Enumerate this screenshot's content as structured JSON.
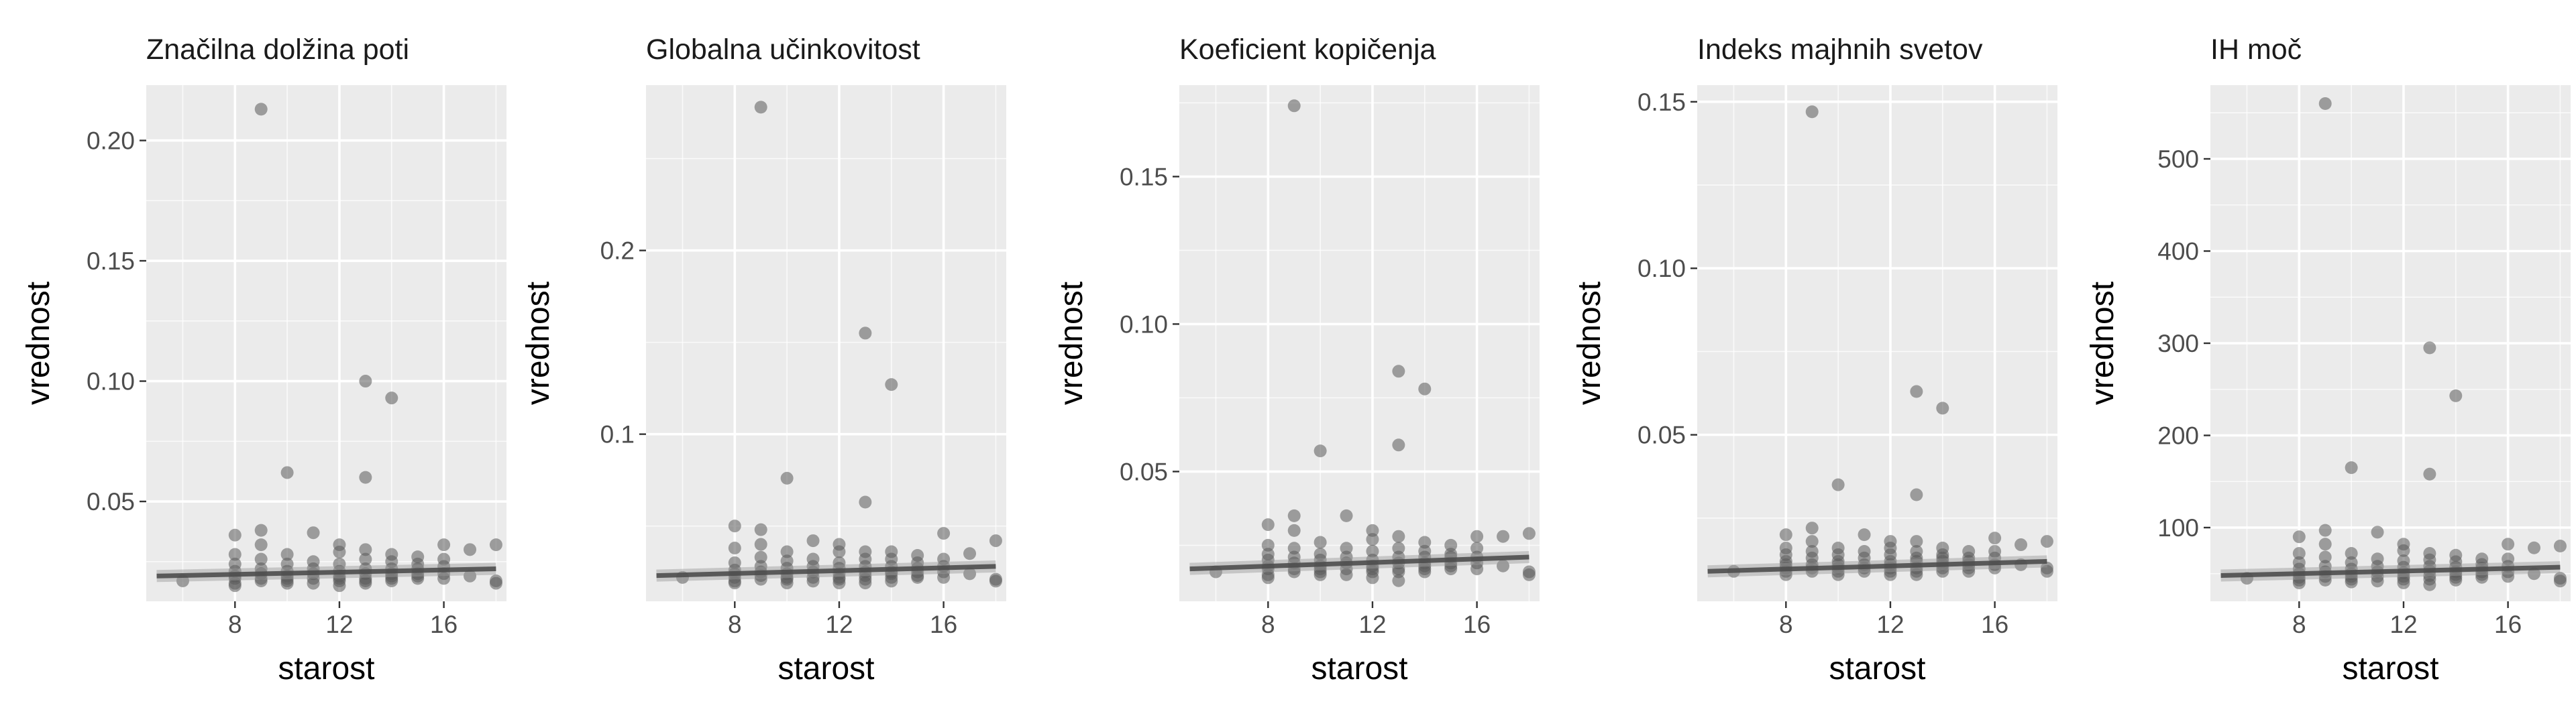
{
  "chart_data": [
    {
      "type": "scatter",
      "title": "Značilna dolžina poti",
      "xlabel": "starost",
      "ylabel": "vrednost",
      "xlim": [
        4.6,
        18.4
      ],
      "ylim": [
        0.0085,
        0.223
      ],
      "xticks": [
        8,
        12,
        16
      ],
      "xtick_labels": [
        "8",
        "12",
        "16"
      ],
      "yticks": [
        0.05,
        0.1,
        0.15,
        0.2
      ],
      "ytick_labels": [
        "0.05",
        "0.10",
        "0.15",
        "0.20"
      ],
      "trend": {
        "x": [
          5,
          18
        ],
        "y": [
          0.019,
          0.022
        ]
      },
      "points": {
        "x": [
          6,
          8,
          8,
          8,
          8,
          8,
          8,
          8,
          8,
          9,
          9,
          9,
          9,
          9,
          9,
          9,
          9,
          10,
          10,
          10,
          10,
          10,
          10,
          10,
          10,
          11,
          11,
          11,
          11,
          11,
          11,
          12,
          12,
          12,
          12,
          12,
          12,
          12,
          12,
          13,
          13,
          13,
          13,
          13,
          13,
          13,
          13,
          13,
          14,
          14,
          14,
          14,
          14,
          14,
          14,
          14,
          15,
          15,
          15,
          15,
          15,
          15,
          16,
          16,
          16,
          16,
          16,
          17,
          17,
          18,
          18,
          18
        ],
        "y": [
          0.017,
          0.036,
          0.028,
          0.024,
          0.021,
          0.019,
          0.018,
          0.016,
          0.015,
          0.213,
          0.038,
          0.032,
          0.026,
          0.022,
          0.02,
          0.018,
          0.017,
          0.062,
          0.028,
          0.024,
          0.021,
          0.019,
          0.018,
          0.017,
          0.016,
          0.037,
          0.025,
          0.022,
          0.02,
          0.018,
          0.016,
          0.032,
          0.029,
          0.024,
          0.021,
          0.019,
          0.018,
          0.017,
          0.015,
          0.1,
          0.06,
          0.03,
          0.026,
          0.022,
          0.02,
          0.018,
          0.017,
          0.016,
          0.093,
          0.028,
          0.025,
          0.022,
          0.02,
          0.019,
          0.018,
          0.017,
          0.027,
          0.024,
          0.022,
          0.02,
          0.019,
          0.018,
          0.032,
          0.026,
          0.023,
          0.02,
          0.018,
          0.03,
          0.019,
          0.032,
          0.017,
          0.016
        ]
      }
    },
    {
      "type": "scatter",
      "title": "Globalna učinkovitost",
      "xlabel": "starost",
      "ylabel": "vrednost",
      "xlim": [
        4.6,
        18.4
      ],
      "ylim": [
        0.009,
        0.29
      ],
      "xticks": [
        8,
        12,
        16
      ],
      "xtick_labels": [
        "8",
        "12",
        "16"
      ],
      "yticks": [
        0.1,
        0.2
      ],
      "ytick_labels": [
        "0.1",
        "0.2"
      ],
      "trend": {
        "x": [
          5,
          18
        ],
        "y": [
          0.023,
          0.028
        ]
      },
      "points": {
        "x": [
          6,
          8,
          8,
          8,
          8,
          8,
          8,
          8,
          8,
          9,
          9,
          9,
          9,
          9,
          9,
          9,
          9,
          10,
          10,
          10,
          10,
          10,
          10,
          10,
          10,
          11,
          11,
          11,
          11,
          11,
          11,
          12,
          12,
          12,
          12,
          12,
          12,
          12,
          12,
          13,
          13,
          13,
          13,
          13,
          13,
          13,
          13,
          13,
          14,
          14,
          14,
          14,
          14,
          14,
          14,
          14,
          15,
          15,
          15,
          15,
          15,
          15,
          16,
          16,
          16,
          16,
          16,
          17,
          17,
          18,
          18,
          18
        ],
        "y": [
          0.022,
          0.05,
          0.038,
          0.03,
          0.026,
          0.024,
          0.022,
          0.02,
          0.019,
          0.278,
          0.048,
          0.04,
          0.033,
          0.028,
          0.025,
          0.023,
          0.021,
          0.076,
          0.036,
          0.031,
          0.027,
          0.024,
          0.022,
          0.021,
          0.019,
          0.042,
          0.032,
          0.028,
          0.025,
          0.022,
          0.02,
          0.04,
          0.036,
          0.03,
          0.027,
          0.024,
          0.022,
          0.021,
          0.019,
          0.155,
          0.063,
          0.036,
          0.032,
          0.028,
          0.025,
          0.023,
          0.021,
          0.019,
          0.127,
          0.036,
          0.032,
          0.028,
          0.025,
          0.024,
          0.022,
          0.02,
          0.034,
          0.03,
          0.027,
          0.025,
          0.023,
          0.022,
          0.046,
          0.032,
          0.028,
          0.025,
          0.022,
          0.035,
          0.024,
          0.042,
          0.021,
          0.02
        ]
      }
    },
    {
      "type": "scatter",
      "title": "Koeficient kopičenja",
      "xlabel": "starost",
      "ylabel": "vrednost",
      "xlim": [
        4.6,
        18.4
      ],
      "ylim": [
        0.006,
        0.181
      ],
      "xticks": [
        8,
        12,
        16
      ],
      "xtick_labels": [
        "8",
        "12",
        "16"
      ],
      "yticks": [
        0.05,
        0.1,
        0.15
      ],
      "ytick_labels": [
        "0.05",
        "0.10",
        "0.15"
      ],
      "trend": {
        "x": [
          5,
          18
        ],
        "y": [
          0.017,
          0.021
        ]
      },
      "points": {
        "x": [
          6,
          8,
          8,
          8,
          8,
          8,
          8,
          8,
          8,
          9,
          9,
          9,
          9,
          9,
          9,
          9,
          9,
          10,
          10,
          10,
          10,
          10,
          10,
          10,
          10,
          11,
          11,
          11,
          11,
          11,
          11,
          12,
          12,
          12,
          12,
          12,
          12,
          12,
          12,
          13,
          13,
          13,
          13,
          13,
          13,
          13,
          13,
          13,
          14,
          14,
          14,
          14,
          14,
          14,
          14,
          14,
          15,
          15,
          15,
          15,
          15,
          15,
          16,
          16,
          16,
          16,
          16,
          17,
          17,
          18,
          18,
          18
        ],
        "y": [
          0.016,
          0.032,
          0.025,
          0.022,
          0.02,
          0.018,
          0.017,
          0.015,
          0.014,
          0.174,
          0.035,
          0.03,
          0.024,
          0.021,
          0.019,
          0.017,
          0.016,
          0.057,
          0.026,
          0.022,
          0.02,
          0.018,
          0.017,
          0.016,
          0.015,
          0.035,
          0.024,
          0.021,
          0.019,
          0.017,
          0.015,
          0.03,
          0.027,
          0.023,
          0.02,
          0.018,
          0.017,
          0.016,
          0.014,
          0.084,
          0.059,
          0.028,
          0.024,
          0.021,
          0.019,
          0.017,
          0.016,
          0.013,
          0.078,
          0.026,
          0.023,
          0.021,
          0.019,
          0.018,
          0.017,
          0.016,
          0.025,
          0.022,
          0.021,
          0.019,
          0.018,
          0.017,
          0.028,
          0.024,
          0.021,
          0.019,
          0.017,
          0.028,
          0.018,
          0.029,
          0.016,
          0.015
        ]
      }
    },
    {
      "type": "scatter",
      "title": "Indeks majhnih svetov",
      "xlabel": "starost",
      "ylabel": "vrednost",
      "xlim": [
        4.6,
        18.4
      ],
      "ylim": [
        0.0,
        0.155
      ],
      "xticks": [
        8,
        12,
        16
      ],
      "xtick_labels": [
        "8",
        "12",
        "16"
      ],
      "yticks": [
        0.05,
        0.1,
        0.15
      ],
      "ytick_labels": [
        "0.05",
        "0.10",
        "0.15"
      ],
      "trend": {
        "x": [
          5,
          18
        ],
        "y": [
          0.009,
          0.012
        ]
      },
      "points": {
        "x": [
          6,
          8,
          8,
          8,
          8,
          8,
          8,
          8,
          8,
          9,
          9,
          9,
          9,
          9,
          9,
          9,
          9,
          10,
          10,
          10,
          10,
          10,
          10,
          10,
          10,
          11,
          11,
          11,
          11,
          11,
          11,
          12,
          12,
          12,
          12,
          12,
          12,
          12,
          12,
          13,
          13,
          13,
          13,
          13,
          13,
          13,
          13,
          13,
          14,
          14,
          14,
          14,
          14,
          14,
          14,
          14,
          15,
          15,
          15,
          15,
          15,
          15,
          16,
          16,
          16,
          16,
          16,
          17,
          17,
          18,
          18,
          18
        ],
        "y": [
          0.009,
          0.02,
          0.016,
          0.014,
          0.012,
          0.011,
          0.01,
          0.009,
          0.008,
          0.147,
          0.022,
          0.018,
          0.015,
          0.013,
          0.011,
          0.01,
          0.009,
          0.035,
          0.016,
          0.014,
          0.012,
          0.011,
          0.01,
          0.009,
          0.008,
          0.02,
          0.015,
          0.013,
          0.011,
          0.01,
          0.009,
          0.018,
          0.016,
          0.014,
          0.012,
          0.011,
          0.01,
          0.009,
          0.008,
          0.063,
          0.032,
          0.018,
          0.015,
          0.013,
          0.012,
          0.01,
          0.009,
          0.008,
          0.058,
          0.016,
          0.014,
          0.013,
          0.012,
          0.011,
          0.01,
          0.009,
          0.015,
          0.013,
          0.012,
          0.011,
          0.01,
          0.009,
          0.019,
          0.015,
          0.013,
          0.011,
          0.01,
          0.017,
          0.011,
          0.018,
          0.01,
          0.009
        ]
      }
    },
    {
      "type": "scatter",
      "title": "IH moč",
      "xlabel": "starost",
      "ylabel": "vrednost",
      "xlim": [
        4.6,
        18.4
      ],
      "ylim": [
        20,
        580
      ],
      "xticks": [
        8,
        12,
        16
      ],
      "xtick_labels": [
        "8",
        "12",
        "16"
      ],
      "yticks": [
        100,
        200,
        300,
        400,
        500
      ],
      "ytick_labels": [
        "100",
        "200",
        "300",
        "400",
        "500"
      ],
      "trend": {
        "x": [
          5,
          18
        ],
        "y": [
          48,
          57
        ]
      },
      "points": {
        "x": [
          6,
          8,
          8,
          8,
          8,
          8,
          8,
          8,
          8,
          9,
          9,
          9,
          9,
          9,
          9,
          9,
          9,
          10,
          10,
          10,
          10,
          10,
          10,
          10,
          10,
          11,
          11,
          11,
          11,
          11,
          11,
          12,
          12,
          12,
          12,
          12,
          12,
          12,
          12,
          13,
          13,
          13,
          13,
          13,
          13,
          13,
          13,
          13,
          14,
          14,
          14,
          14,
          14,
          14,
          14,
          14,
          15,
          15,
          15,
          15,
          15,
          15,
          16,
          16,
          16,
          16,
          16,
          17,
          17,
          18,
          18,
          18
        ],
        "y": [
          45,
          90,
          72,
          62,
          55,
          50,
          46,
          43,
          40,
          560,
          97,
          82,
          68,
          58,
          52,
          47,
          43,
          165,
          72,
          62,
          55,
          50,
          47,
          44,
          41,
          95,
          66,
          58,
          52,
          47,
          42,
          82,
          75,
          64,
          57,
          51,
          47,
          44,
          40,
          295,
          158,
          72,
          65,
          58,
          53,
          48,
          44,
          38,
          243,
          70,
          63,
          57,
          52,
          49,
          46,
          43,
          66,
          60,
          56,
          52,
          49,
          46,
          82,
          66,
          58,
          52,
          47,
          78,
          50,
          80,
          45,
          42
        ]
      }
    }
  ],
  "colors": {
    "panel_background": "#ebebeb",
    "grid": "#ffffff",
    "point": "#595959",
    "trend": "#4d4d4d",
    "trend_ribbon": "#999999",
    "tick_label": "#4d4d4d",
    "axis_title": "#000000"
  }
}
